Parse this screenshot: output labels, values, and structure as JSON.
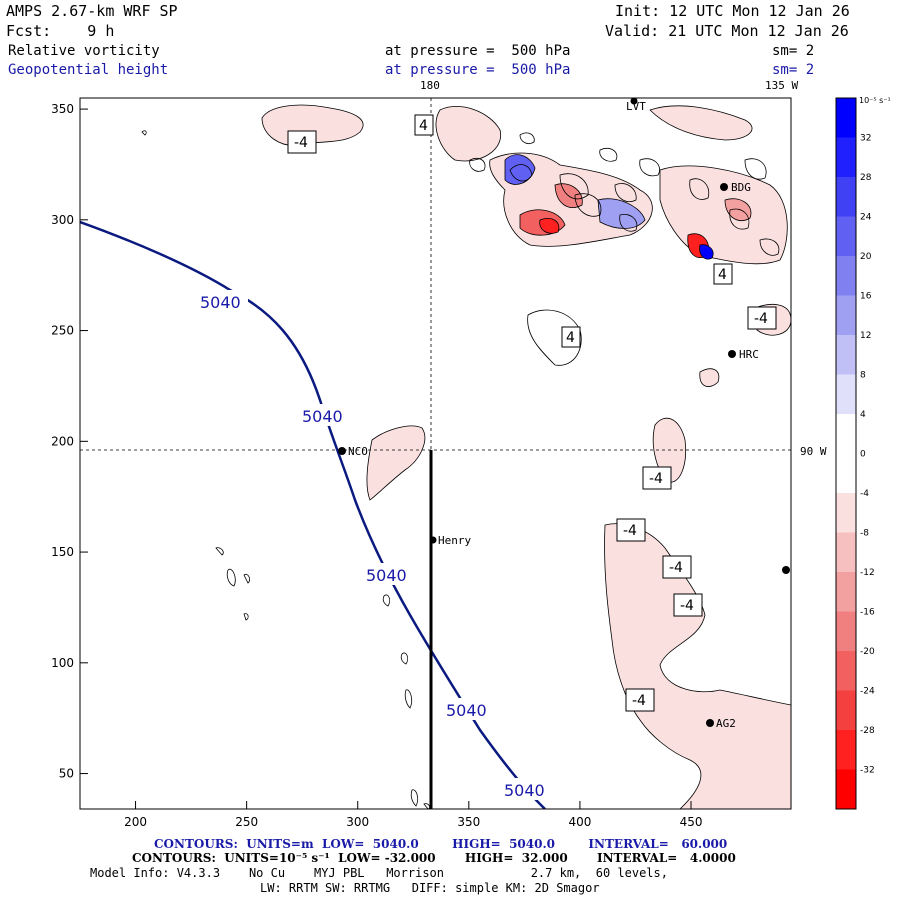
{
  "header": {
    "model": "AMPS 2.67-km WRF SP",
    "forecast": "Fcst:    9 h",
    "init": "Init: 12 UTC Mon 12 Jan 26",
    "valid": "Valid: 21 UTC Mon 12 Jan 26",
    "field1": "Relative vorticity",
    "field1_level": "at pressure =  500 hPa",
    "field1_sm": "sm= 2",
    "field2": "Geopotential height",
    "field2_level": "at pressure =  500 hPa",
    "field2_sm": "sm= 2",
    "lon_top_180": "180",
    "lon_top_135w": "135 W",
    "lon_right_90w": "90 W"
  },
  "map": {
    "x_ticks": [
      "200",
      "250",
      "300",
      "350",
      "400",
      "450"
    ],
    "y_ticks": [
      "350",
      "300",
      "250",
      "200",
      "150",
      "100",
      "50"
    ],
    "x_range": [
      175,
      495
    ],
    "y_range": [
      34,
      355
    ],
    "height_contour_labels": [
      "5040",
      "5040",
      "5040",
      "5040",
      "5040"
    ],
    "vorticity_labels": [
      "-4",
      "4",
      "4",
      "4",
      "-4",
      "-4",
      "-4",
      "-4",
      "-4",
      "-4"
    ],
    "stations": [
      "NCO",
      "Henry",
      "HRC",
      "BDG",
      "LVT",
      "AG2"
    ],
    "colors": {
      "height_contour": "#0a1a80",
      "neg_fill": "#fbe0e0",
      "pos_fill": "#e0e4fb"
    }
  },
  "colorbar": {
    "unit": "10⁻⁵ s⁻¹",
    "ticks": [
      "32",
      "28",
      "24",
      "20",
      "16",
      "12",
      "8",
      "4",
      "0",
      "-4",
      "-8",
      "-12",
      "-16",
      "-20",
      "-24",
      "-28",
      "-32"
    ],
    "colors": [
      "#0000ff",
      "#2020ff",
      "#4040f5",
      "#6060f2",
      "#8080f0",
      "#a0a0f3",
      "#c0c0f7",
      "#e0e0fb",
      "#ffffff",
      "#ffffff",
      "#fbe0e0",
      "#f7c0c0",
      "#f3a0a0",
      "#f08080",
      "#f26060",
      "#f54040",
      "#ff2020",
      "#ff0000"
    ]
  },
  "footer": {
    "line1": "CONTOURS:  UNITS=m  LOW=  5040.0        HIGH=  5040.0        INTERVAL=   60.000",
    "line2": "CONTOURS:  UNITS=10⁻⁵ s⁻¹  LOW= -32.000       HIGH=  32.000       INTERVAL=   4.0000",
    "line3": "Model Info: V4.3.3    No Cu    MYJ PBL   Morrison            2.7 km,  60 levels,",
    "line4": "LW: RRTM SW: RRTMG   DIFF: simple KM: 2D Smagor"
  }
}
